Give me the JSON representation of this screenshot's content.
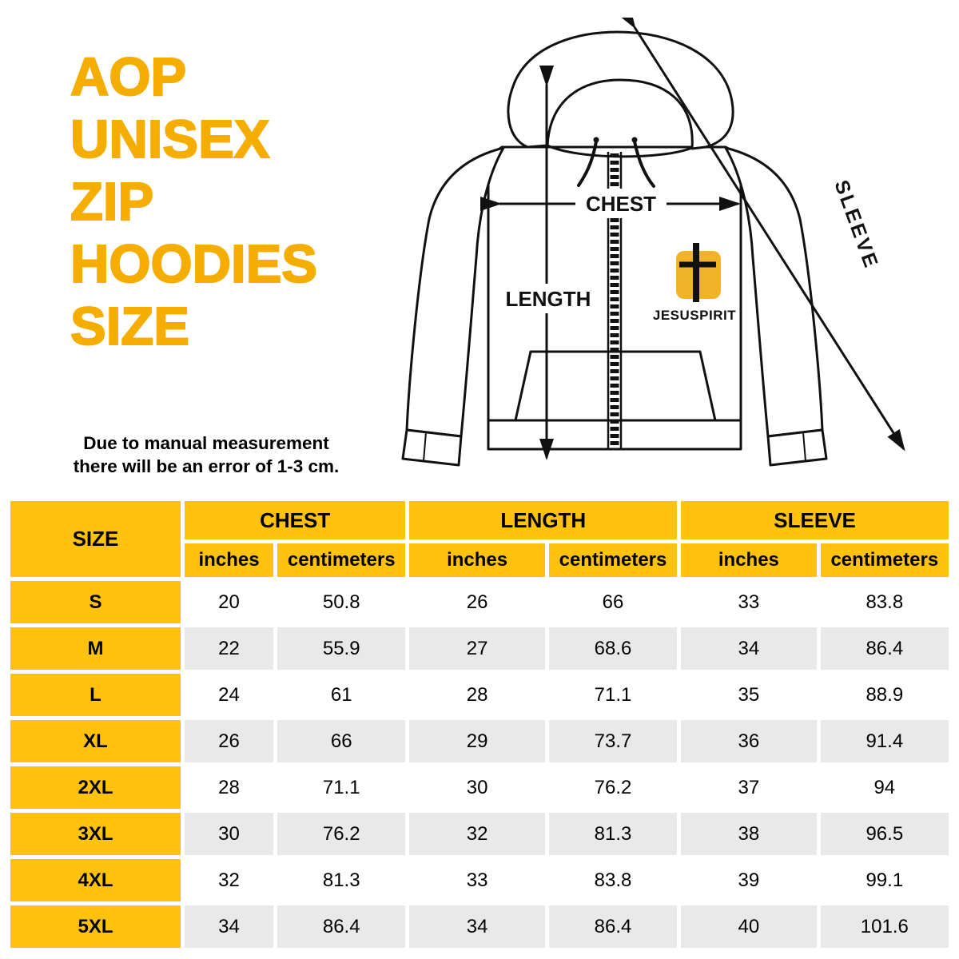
{
  "colors": {
    "title": "#F5AD00",
    "table_header": "#FFC20E",
    "row_alt": "#E9E9E9",
    "logo_gold": "#F0B32A"
  },
  "title_lines": [
    "AOP",
    "UNISEX",
    "ZIP",
    "HOODIES",
    "SIZE"
  ],
  "note_lines": [
    "Due to manual measurement",
    "there will be an error of 1-3 cm."
  ],
  "diagram": {
    "chest_label": "CHEST",
    "length_label": "LENGTH",
    "sleeve_label": "SLEEVE",
    "brand": "JESUSPIRIT"
  },
  "chart_data": {
    "type": "table",
    "title": "AOP UNISEX ZIP HOODIES SIZE",
    "size_header": "SIZE",
    "group_headers": [
      "CHEST",
      "LENGTH",
      "SLEEVE"
    ],
    "unit_headers": [
      "inches",
      "centimeters"
    ],
    "columns": [
      "SIZE",
      "CHEST inches",
      "CHEST centimeters",
      "LENGTH inches",
      "LENGTH centimeters",
      "SLEEVE inches",
      "SLEEVE centimeters"
    ],
    "rows": [
      {
        "size": "S",
        "values": [
          "20",
          "50.8",
          "26",
          "66",
          "33",
          "83.8"
        ]
      },
      {
        "size": "M",
        "values": [
          "22",
          "55.9",
          "27",
          "68.6",
          "34",
          "86.4"
        ]
      },
      {
        "size": "L",
        "values": [
          "24",
          "61",
          "28",
          "71.1",
          "35",
          "88.9"
        ]
      },
      {
        "size": "XL",
        "values": [
          "26",
          "66",
          "29",
          "73.7",
          "36",
          "91.4"
        ]
      },
      {
        "size": "2XL",
        "values": [
          "28",
          "71.1",
          "30",
          "76.2",
          "37",
          "94"
        ]
      },
      {
        "size": "3XL",
        "values": [
          "30",
          "76.2",
          "32",
          "81.3",
          "38",
          "96.5"
        ]
      },
      {
        "size": "4XL",
        "values": [
          "32",
          "81.3",
          "33",
          "83.8",
          "39",
          "99.1"
        ]
      },
      {
        "size": "5XL",
        "values": [
          "34",
          "86.4",
          "34",
          "86.4",
          "40",
          "101.6"
        ]
      }
    ]
  }
}
